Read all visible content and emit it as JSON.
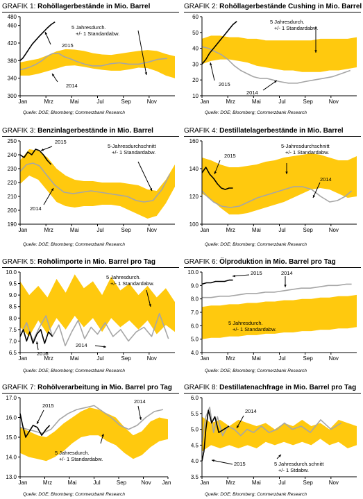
{
  "colors": {
    "band": "#ffc90e",
    "band_dark": "#f5b800",
    "line_2014": "#a6a6a6",
    "line_2015": "#000000",
    "axis": "#000000"
  },
  "x_ticks_default": [
    "Jan",
    "Mrz",
    "Mai",
    "Jul",
    "Sep",
    "Nov"
  ],
  "x_ticks_with_end": [
    "Jan",
    "Mrz",
    "Mai",
    "Jul",
    "Sep",
    "Nov",
    "Jan"
  ],
  "charts": [
    {
      "prefix": "GRAFIK 1:",
      "title": "Rohöllagerbestände in Mio. Barrel",
      "source": "Quelle: DOE; Bloomberg; Commerzbank Research",
      "chart_data": {
        "type": "line",
        "ylim": [
          300,
          480
        ],
        "yticks": [
          300,
          340,
          380,
          420,
          460,
          480
        ],
        "x_ticks": [
          "Jan",
          "Mrz",
          "Mai",
          "Jul",
          "Sep",
          "Nov"
        ],
        "annotations": [
          "2015",
          "5 Jahresdurch. +/- 1 Standardabw.",
          "2014"
        ],
        "band_upper": [
          376,
          380,
          384,
          392,
          401,
          406,
          405,
          402,
          397,
          394,
          393,
          396,
          399,
          402,
          404,
          402,
          395,
          390
        ],
        "band_lower": [
          346,
          346,
          350,
          356,
          362,
          368,
          369,
          366,
          362,
          359,
          357,
          357,
          360,
          364,
          363,
          356,
          346,
          340
        ],
        "series_2014": [
          359,
          362,
          366,
          371,
          380,
          390,
          396,
          396,
          389,
          384,
          378,
          372,
          368,
          368,
          373,
          375,
          372,
          372,
          377,
          383,
          385
        ],
        "series_2014_x": [
          0,
          0.4,
          0.8,
          1.2,
          1.7,
          2.1,
          2.5,
          3.0,
          3.4,
          3.9,
          4.4,
          5.0,
          5.6,
          6.3,
          7.0,
          7.7,
          8.4,
          9.2,
          10.0,
          10.7,
          11.4
        ],
        "series_2015": [
          380,
          386,
          396,
          407,
          418,
          426,
          436,
          445,
          454,
          462,
          468
        ],
        "series_2015_x": [
          0,
          0.22,
          0.45,
          0.7,
          0.95,
          1.2,
          1.5,
          1.8,
          2.1,
          2.4,
          2.7
        ]
      }
    },
    {
      "prefix": "GRAFIK 2:",
      "title": "Rohöllagerbestände Cushing in Mio. Barrel",
      "source": "Quelle: DOE; Bloomberg; Commerzbank Research",
      "chart_data": {
        "type": "line",
        "ylim": [
          10,
          60
        ],
        "yticks": [
          10,
          20,
          30,
          40,
          50,
          60
        ],
        "x_ticks": [
          "Jan",
          "Mrz",
          "Mai",
          "Jul",
          "Sep",
          "Nov"
        ],
        "annotations": [
          "5 Jahresdurch. +/- 1 Standardabw.",
          "2015",
          "2014"
        ],
        "band_upper": [
          46,
          48,
          48,
          47,
          47,
          46,
          46,
          45,
          45,
          45,
          45,
          45,
          45,
          46,
          46,
          46,
          46,
          47
        ],
        "band_lower": [
          30,
          32,
          33,
          33,
          32,
          31,
          29,
          28,
          27,
          26,
          26,
          25,
          25,
          25,
          26,
          26,
          27,
          28
        ],
        "series_2014": [
          41,
          40,
          38,
          36,
          33,
          29,
          26,
          24,
          22,
          21,
          21,
          20,
          19,
          18,
          18,
          19,
          20,
          21,
          22,
          24,
          26
        ],
        "series_2014_x": [
          0,
          0.5,
          1.0,
          1.5,
          2.0,
          2.5,
          3.0,
          3.5,
          4.0,
          4.5,
          5.0,
          5.5,
          6.0,
          6.7,
          7.4,
          8.0,
          8.7,
          9.4,
          10.1,
          10.8,
          11.5
        ],
        "series_2015": [
          30,
          33,
          37,
          40,
          43,
          46,
          49,
          52,
          55,
          57
        ],
        "series_2015_x": [
          0,
          0.3,
          0.6,
          0.9,
          1.2,
          1.5,
          1.8,
          2.1,
          2.4,
          2.7
        ]
      }
    },
    {
      "prefix": "GRAFIK 3:",
      "title": "Benzinlagerbestände in Mio. Barrel",
      "source": "Quelle: DOE; Bloomberg; Commerzbank Research",
      "chart_data": {
        "type": "line",
        "ylim": [
          190,
          250
        ],
        "yticks": [
          190,
          200,
          210,
          220,
          230,
          240,
          250
        ],
        "x_ticks": [
          "Jan",
          "Mrz",
          "Mai",
          "Jul",
          "Sep",
          "Nov"
        ],
        "annotations": [
          "2015",
          "5-Jahresdurchschnitt +/- 1 Standardabw.",
          "2014"
        ],
        "band_upper": [
          236,
          244,
          243,
          238,
          230,
          225,
          222,
          221,
          221,
          220,
          220,
          220,
          219,
          218,
          215,
          214,
          222,
          233
        ],
        "band_lower": [
          219,
          225,
          222,
          214,
          206,
          203,
          202,
          203,
          203,
          204,
          204,
          203,
          200,
          197,
          194,
          196,
          205,
          217
        ],
        "series_2014": [
          228,
          233,
          234,
          232,
          226,
          218,
          213,
          212,
          213,
          214,
          213,
          212,
          211,
          210,
          207,
          206,
          207,
          215,
          226
        ],
        "series_2014_x": [
          0,
          0.5,
          1.0,
          1.5,
          2.0,
          2.7,
          3.4,
          4.1,
          4.8,
          5.5,
          6.2,
          6.9,
          7.6,
          8.3,
          9.0,
          9.6,
          10.3,
          11.0,
          11.6
        ],
        "series_2015": [
          240,
          238,
          242,
          240,
          244,
          243,
          240,
          236,
          233
        ],
        "series_2015_x": [
          0,
          0.3,
          0.6,
          0.9,
          1.2,
          1.5,
          1.8,
          2.1,
          2.4
        ]
      }
    },
    {
      "prefix": "GRAFIK 4:",
      "title": "Destillatelagerbestände in Mio. Barrel",
      "source": "Quelle: DOE; Bloomberg; Commerzbank Research",
      "chart_data": {
        "type": "line",
        "ylim": [
          100,
          160
        ],
        "yticks": [
          100,
          120,
          140,
          160
        ],
        "x_ticks": [
          "Jan",
          "Mrz",
          "Mai",
          "Jul",
          "Sep",
          "Nov"
        ],
        "annotations": [
          "2015",
          "5-Jahresdurchschnitt +/- 1 Standardabw.",
          "2014"
        ],
        "band_upper": [
          148,
          146,
          143,
          141,
          141,
          142,
          143,
          145,
          146,
          148,
          149,
          150,
          151,
          150,
          148,
          146,
          146,
          149
        ],
        "band_lower": [
          122,
          118,
          112,
          107,
          107,
          108,
          110,
          112,
          114,
          116,
          119,
          122,
          125,
          126,
          125,
          122,
          119,
          120
        ],
        "series_2014": [
          124,
          120,
          116,
          113,
          112,
          113,
          116,
          119,
          121,
          123,
          125,
          127,
          127,
          125,
          120,
          116,
          117,
          120,
          124
        ],
        "series_2014_x": [
          0,
          0.4,
          0.9,
          1.5,
          2.2,
          2.9,
          3.6,
          4.3,
          5.0,
          5.7,
          6.4,
          7.1,
          7.8,
          8.5,
          9.2,
          9.9,
          10.5,
          11.1,
          11.6
        ],
        "series_2015": [
          137,
          141,
          136,
          133,
          129,
          126,
          125,
          126,
          126
        ],
        "series_2015_x": [
          0,
          0.3,
          0.6,
          0.9,
          1.2,
          1.5,
          1.8,
          2.1,
          2.4
        ]
      }
    },
    {
      "prefix": "GRAFIK 5:",
      "title": "Rohölimporte in Mio. Barrel pro Tag",
      "source": "Quelle: DOE; Bloomberg; Commerzbank Research",
      "chart_data": {
        "type": "line",
        "ylim": [
          6.5,
          10.0
        ],
        "yticks": [
          6.5,
          7.0,
          7.5,
          8.0,
          8.5,
          9.0,
          9.5,
          10.0
        ],
        "x_ticks": [
          "Jan",
          "Mrz",
          "Mai",
          "Jul",
          "Sep",
          "Nov"
        ],
        "annotations": [
          "5 Jahresdurch. +/- 1 Standardabw.",
          "2014",
          "2015"
        ],
        "band_upper": [
          9.6,
          9.0,
          9.4,
          8.9,
          9.7,
          9.1,
          9.9,
          9.3,
          9.6,
          9.0,
          9.8,
          9.2,
          9.5,
          9.0,
          9.4,
          8.9,
          9.3,
          8.7
        ],
        "band_lower": [
          7.6,
          7.2,
          7.9,
          7.3,
          8.0,
          7.5,
          8.1,
          7.6,
          8.0,
          7.4,
          8.0,
          7.6,
          7.9,
          7.5,
          7.9,
          7.3,
          7.7,
          7.4
        ],
        "series_2014": [
          7.2,
          7.8,
          7.0,
          7.6,
          8.1,
          7.2,
          7.7,
          6.8,
          7.4,
          7.9,
          7.1,
          7.6,
          7.3,
          7.8,
          7.2,
          7.5,
          7.0,
          7.4,
          7.6,
          7.2,
          8.2,
          7.1
        ],
        "series_2014_x": [
          0,
          0.5,
          1.0,
          1.5,
          2.0,
          2.5,
          3.0,
          3.5,
          4.0,
          4.5,
          5.0,
          5.5,
          6.0,
          6.6,
          7.2,
          7.8,
          8.4,
          9.0,
          9.6,
          10.2,
          10.8,
          11.5
        ],
        "series_2015": [
          7.2,
          7.5,
          7.0,
          7.4,
          6.9,
          7.3,
          7.5,
          6.9,
          7.4,
          7.2
        ],
        "series_2015_x": [
          0,
          0.25,
          0.5,
          0.75,
          1.0,
          1.3,
          1.6,
          1.9,
          2.2,
          2.5
        ]
      }
    },
    {
      "prefix": "GRAFIK 6:",
      "title": "Ölproduktion in Mio. Barrel pro Tag",
      "source": "Quelle: DOE; Bloomberg; Commerzbank Research",
      "chart_data": {
        "type": "line",
        "ylim": [
          4.0,
          10.0
        ],
        "yticks": [
          4.0,
          5.0,
          6.0,
          7.0,
          8.0,
          9.0,
          10.0
        ],
        "x_ticks": [
          "Jan",
          "Mrz",
          "Mai",
          "Jul",
          "Sep",
          "Nov"
        ],
        "annotations": [
          "2015",
          "2014",
          "5 Jahresdurch. +/- 1 Standardabw."
        ],
        "band_upper": [
          7.4,
          7.5,
          7.5,
          7.6,
          7.6,
          7.7,
          7.7,
          7.8,
          7.8,
          7.9,
          7.9,
          8.0,
          8.0,
          8.1,
          8.1,
          8.2,
          8.2,
          8.3
        ],
        "band_lower": [
          5.0,
          5.1,
          5.1,
          5.2,
          5.2,
          5.3,
          5.3,
          5.4,
          5.4,
          5.5,
          5.5,
          5.6,
          5.6,
          5.7,
          5.7,
          5.8,
          5.8,
          5.9
        ],
        "series_2014": [
          8.1,
          8.1,
          8.2,
          8.2,
          8.3,
          8.4,
          8.4,
          8.5,
          8.5,
          8.6,
          8.7,
          8.8,
          8.8,
          8.9,
          9.0,
          9.0,
          9.1,
          9.1
        ],
        "series_2014_x": [
          0,
          0.7,
          1.4,
          2.1,
          2.8,
          3.5,
          4.2,
          4.9,
          5.6,
          6.3,
          7.0,
          7.7,
          8.4,
          9.1,
          9.8,
          10.5,
          11.2,
          11.6
        ],
        "series_2015": [
          9.1,
          9.2,
          9.2,
          9.3,
          9.3,
          9.3,
          9.4,
          9.4
        ],
        "series_2015_x": [
          0,
          0.35,
          0.7,
          1.05,
          1.4,
          1.75,
          2.1,
          2.4
        ]
      }
    },
    {
      "prefix": "GRAFIK 7:",
      "title": "Rohölverarbeitung in Mio. Barrel pro Tag",
      "source": "Quelle: DOE; Bloomberg; Commerzbank Research",
      "chart_data": {
        "type": "line",
        "ylim": [
          13.0,
          17.0
        ],
        "yticks": [
          13.0,
          14.0,
          15.0,
          16.0,
          17.0
        ],
        "x_ticks": [
          "Jan",
          "Mrz",
          "Mai",
          "Jul",
          "Sep",
          "Nov",
          "Jan"
        ],
        "annotations": [
          "2015",
          "2014",
          "5 Jahresdurch. +/- 1 Standardabw."
        ],
        "band_upper": [
          15.5,
          15.3,
          15.1,
          15.0,
          15.3,
          15.7,
          16.0,
          16.3,
          16.5,
          16.4,
          16.2,
          16.0,
          15.5,
          15.1,
          15.3,
          15.8,
          16.0,
          15.9
        ],
        "band_lower": [
          14.2,
          14.0,
          13.9,
          13.8,
          14.0,
          14.3,
          14.7,
          15.0,
          15.1,
          15.1,
          14.8,
          14.6,
          14.2,
          13.9,
          14.1,
          14.5,
          14.8,
          14.9
        ],
        "series_2014": [
          15.5,
          15.4,
          15.3,
          15.2,
          15.4,
          15.9,
          16.2,
          16.4,
          16.5,
          16.6,
          16.3,
          16.0,
          15.6,
          15.4,
          15.6,
          16.0,
          16.3,
          16.4
        ],
        "series_2014_x": [
          0,
          0.6,
          1.2,
          1.8,
          2.5,
          3.2,
          3.9,
          4.6,
          5.3,
          6.0,
          6.7,
          7.4,
          8.1,
          8.8,
          9.5,
          10.2,
          10.9,
          11.6
        ],
        "series_2015": [
          16.2,
          15.6,
          15.0,
          15.3,
          15.6,
          15.5,
          15.1,
          15.4,
          15.6
        ],
        "series_2015_x": [
          0,
          0.2,
          0.45,
          0.75,
          1.05,
          1.4,
          1.75,
          2.1,
          2.4
        ]
      }
    },
    {
      "prefix": "GRAFIK 8:",
      "title": "Destillatenachfrage in Mio. Barrel pro Tag",
      "source": "Quelle: DOE; Bloomberg; Commerzbank Research",
      "chart_data": {
        "type": "line",
        "ylim": [
          3.5,
          6.0
        ],
        "yticks": [
          3.5,
          4.0,
          4.5,
          5.0,
          5.5,
          6.0
        ],
        "x_ticks": [
          "Jan",
          "Mrz",
          "Mai",
          "Jul",
          "Sep",
          "Nov"
        ],
        "annotations": [
          "2014",
          "2015",
          "5 Jahresdurch.schnitt +/- 1 Stdabw."
        ],
        "band_upper": [
          5.4,
          5.2,
          5.3,
          5.1,
          5.3,
          5.2,
          5.1,
          5.2,
          5.0,
          5.2,
          5.1,
          5.3,
          5.1,
          5.2,
          5.0,
          5.3,
          5.2,
          5.1
        ],
        "band_lower": [
          4.3,
          4.5,
          4.4,
          4.5,
          4.4,
          4.5,
          4.4,
          4.6,
          4.5,
          4.6,
          4.5,
          4.6,
          4.5,
          4.7,
          4.5,
          4.6,
          4.4,
          4.5
        ],
        "series_2014": [
          4.6,
          5.4,
          5.7,
          4.9,
          5.4,
          4.8,
          5.1,
          5.0,
          4.8,
          5.0,
          4.9,
          5.1,
          4.9,
          5.0,
          5.2,
          5.0,
          5.1,
          4.9,
          5.3,
          5.0,
          5.2
        ],
        "series_2014_x": [
          0,
          0.3,
          0.6,
          0.9,
          1.2,
          1.6,
          2.0,
          2.5,
          3.0,
          3.5,
          4.0,
          4.6,
          5.2,
          5.8,
          6.4,
          7.0,
          7.7,
          8.4,
          9.2,
          10.0,
          10.8
        ],
        "series_2015": [
          4.0,
          4.3,
          5.0,
          5.6,
          5.2,
          5.4,
          4.9,
          5.0,
          5.1
        ],
        "series_2015_x": [
          0,
          0.15,
          0.3,
          0.5,
          0.75,
          1.0,
          1.3,
          1.7,
          2.1
        ]
      }
    }
  ]
}
